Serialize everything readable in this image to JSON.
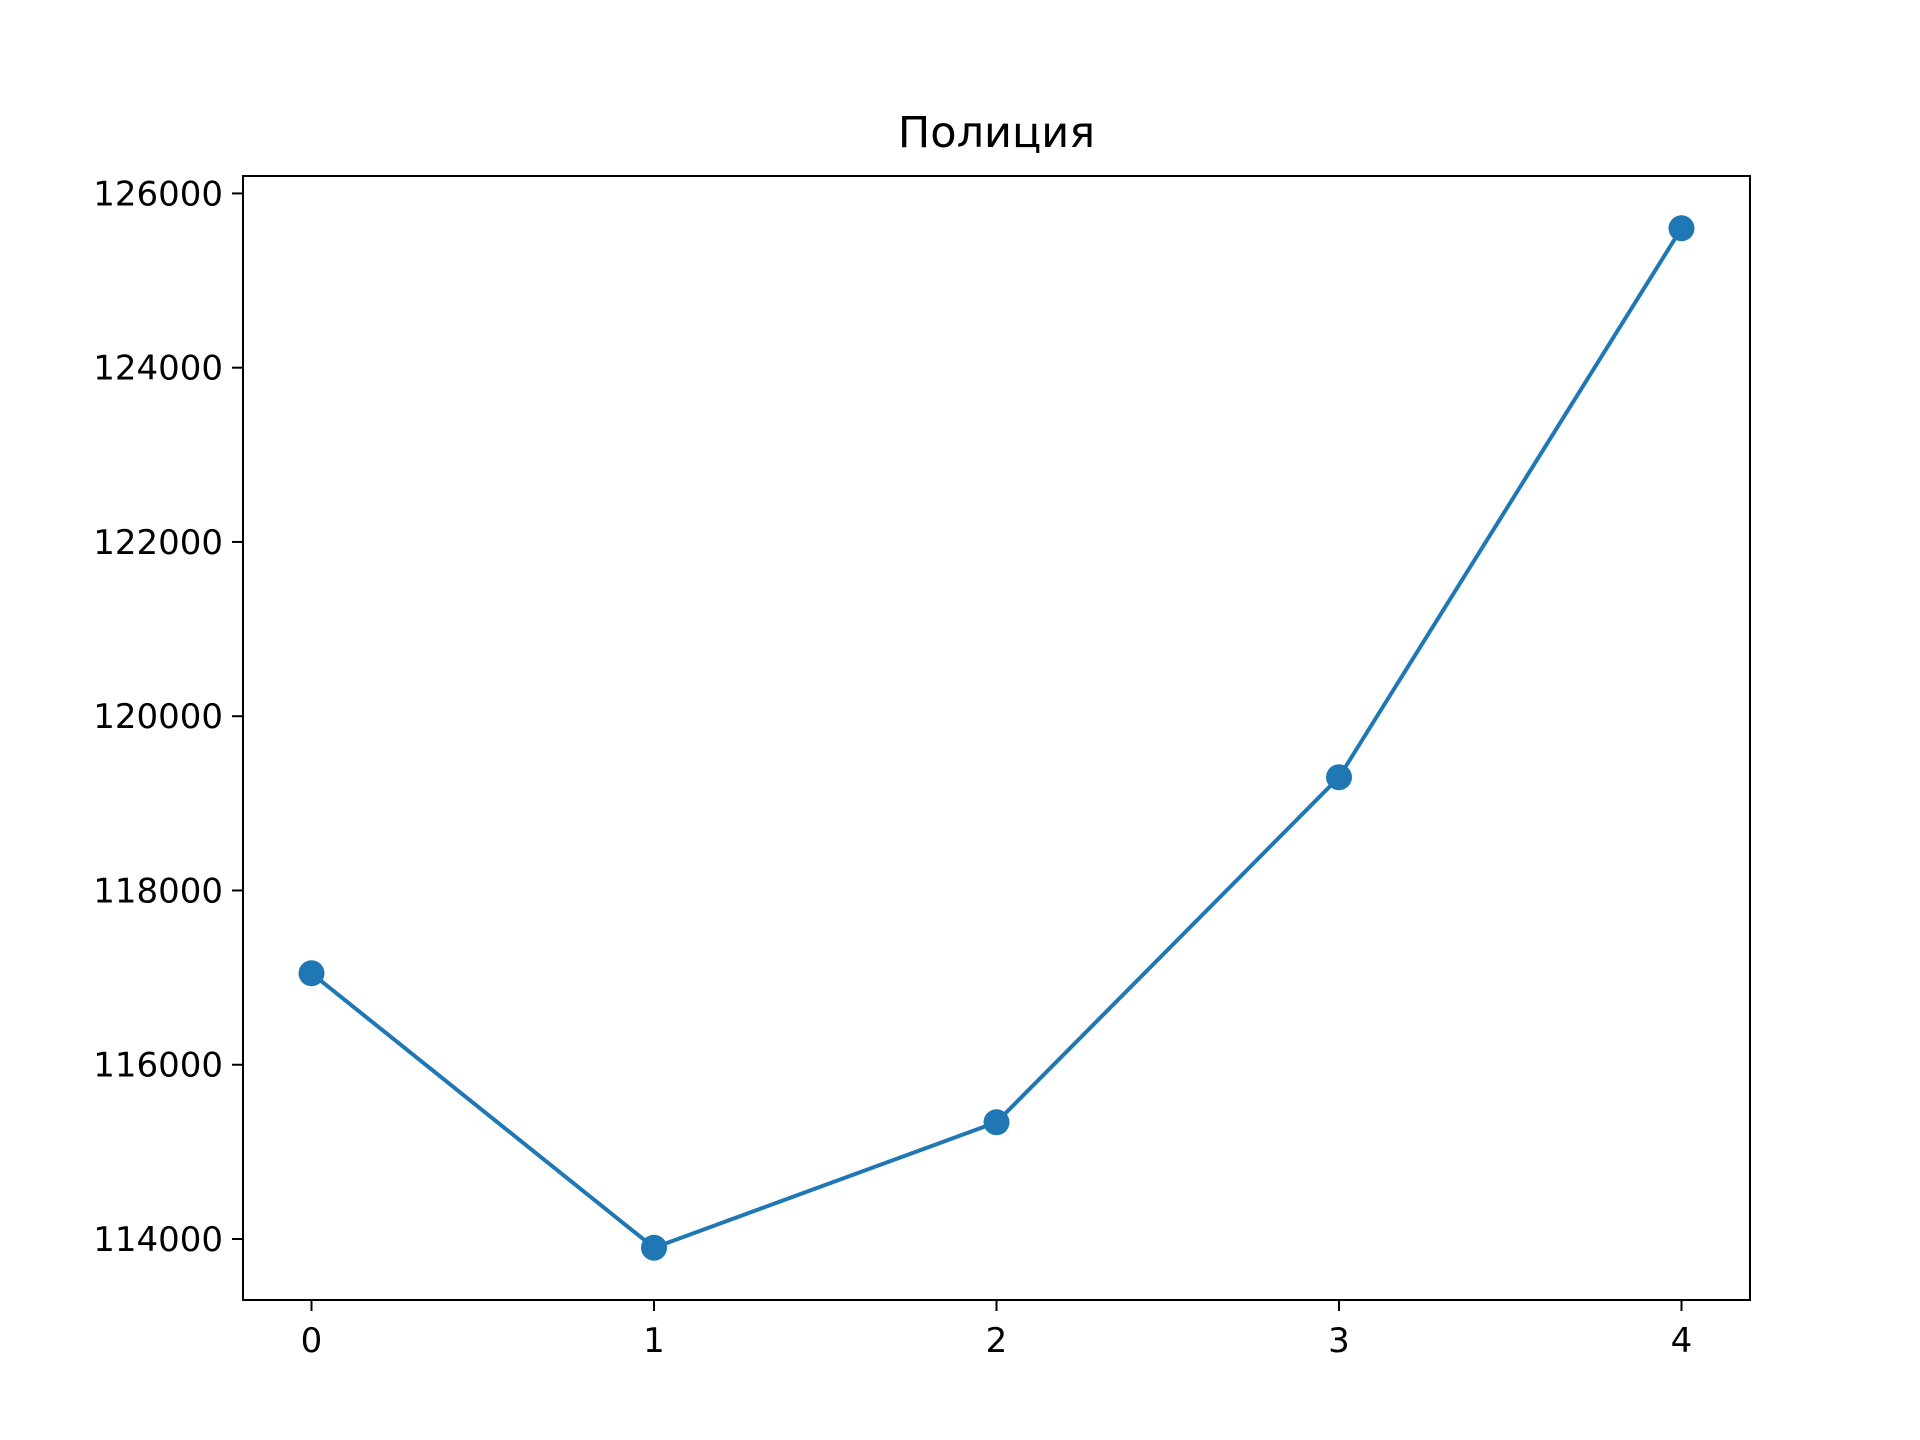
{
  "chart_data": {
    "type": "line",
    "title": "Полиция",
    "xlabel": "",
    "ylabel": "",
    "x": [
      0,
      1,
      2,
      3,
      4
    ],
    "series": [
      {
        "values": [
          117050,
          113900,
          115340,
          119300,
          125600
        ],
        "color": "#1f77b4",
        "marker": "circle"
      }
    ],
    "xlim": [
      -0.2,
      4.2
    ],
    "ylim": [
      113300,
      126200
    ],
    "xticks": [
      0,
      1,
      2,
      3,
      4
    ],
    "xtick_labels": [
      "0",
      "1",
      "2",
      "3",
      "4"
    ],
    "yticks": [
      114000,
      116000,
      118000,
      120000,
      122000,
      124000,
      126000
    ],
    "ytick_labels": [
      "114000",
      "116000",
      "118000",
      "120000",
      "122000",
      "124000",
      "126000"
    ],
    "grid": false,
    "legend": "none"
  }
}
